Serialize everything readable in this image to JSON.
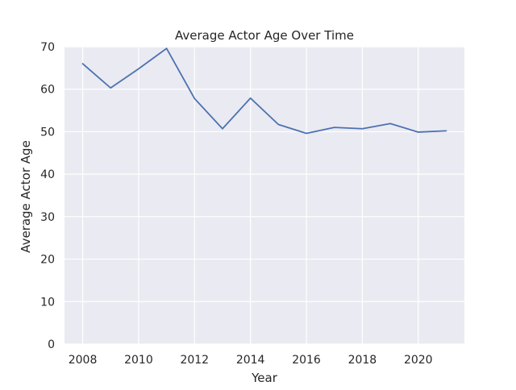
{
  "chart_data": {
    "type": "line",
    "title": "Average Actor Age Over Time",
    "xlabel": "Year",
    "ylabel": "Average Actor Age",
    "x": [
      2008,
      2009,
      2010,
      2011,
      2012,
      2013,
      2014,
      2015,
      2016,
      2017,
      2018,
      2019,
      2020,
      2021
    ],
    "series": [
      {
        "name": "",
        "values": [
          66.0,
          60.3,
          64.8,
          69.6,
          57.8,
          50.7,
          57.9,
          51.7,
          49.6,
          51.0,
          50.7,
          51.9,
          49.9,
          50.2
        ]
      }
    ],
    "xlim": [
      2007.35,
      2021.65
    ],
    "ylim": [
      0,
      70
    ],
    "x_ticks": [
      2008,
      2010,
      2012,
      2014,
      2016,
      2018,
      2020
    ],
    "y_ticks": [
      0,
      10,
      20,
      30,
      40,
      50,
      60,
      70
    ],
    "grid": true,
    "colors": {
      "line": "#4c72b0",
      "plot_background": "#eaeaf2",
      "grid": "#ffffff"
    }
  }
}
